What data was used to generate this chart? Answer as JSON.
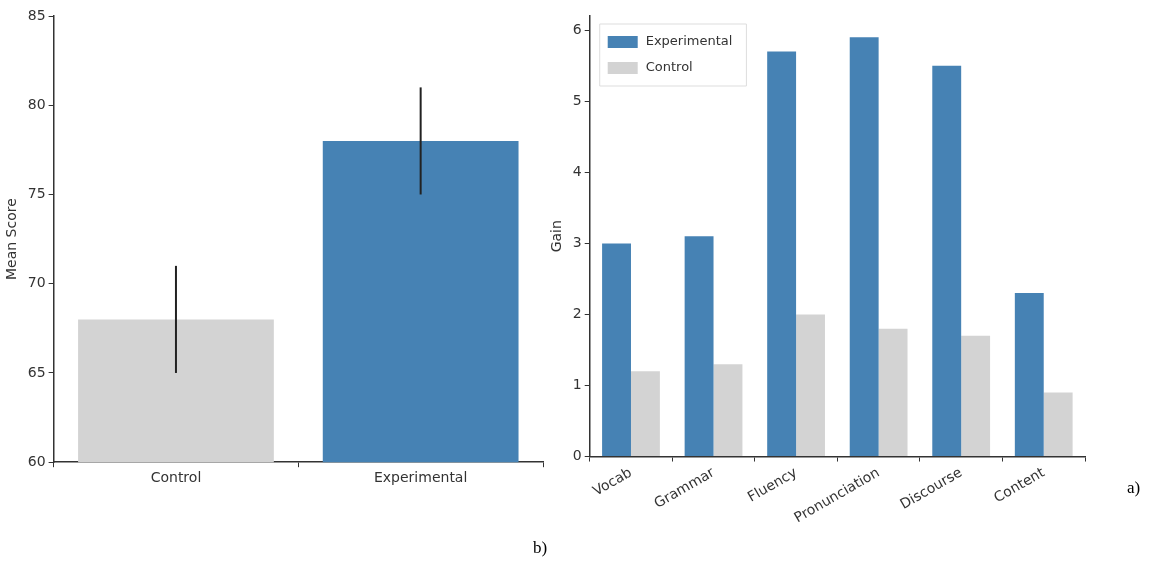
{
  "chart_data": [
    {
      "type": "bar",
      "ylabel": "Mean Score",
      "categories": [
        "Control",
        "Experimental"
      ],
      "values": [
        68,
        78
      ],
      "colors": [
        "#d3d3d3",
        "#4682b4"
      ],
      "errors": [
        3,
        3
      ],
      "ylim": [
        60,
        85
      ],
      "yticks": [
        60,
        65,
        70,
        75,
        80,
        85
      ],
      "grid": false,
      "legend": false,
      "annotations": [
        "b)"
      ]
    },
    {
      "type": "bar",
      "ylabel": "Gain",
      "categories": [
        "Vocab",
        "Grammar",
        "Fluency",
        "Pronunciation",
        "Discourse",
        "Content"
      ],
      "series": [
        {
          "name": "Experimental",
          "color": "#4682b4",
          "values": [
            3.0,
            3.1,
            5.7,
            5.9,
            5.5,
            2.3
          ]
        },
        {
          "name": "Control",
          "color": "#d3d3d3",
          "values": [
            1.2,
            1.3,
            2.0,
            1.8,
            1.7,
            0.9
          ]
        }
      ],
      "ylim": [
        0,
        6.2
      ],
      "yticks": [
        0,
        1,
        2,
        3,
        4,
        5,
        6
      ],
      "grid": false,
      "legend": "top left",
      "annotations": [
        "a)"
      ]
    }
  ]
}
